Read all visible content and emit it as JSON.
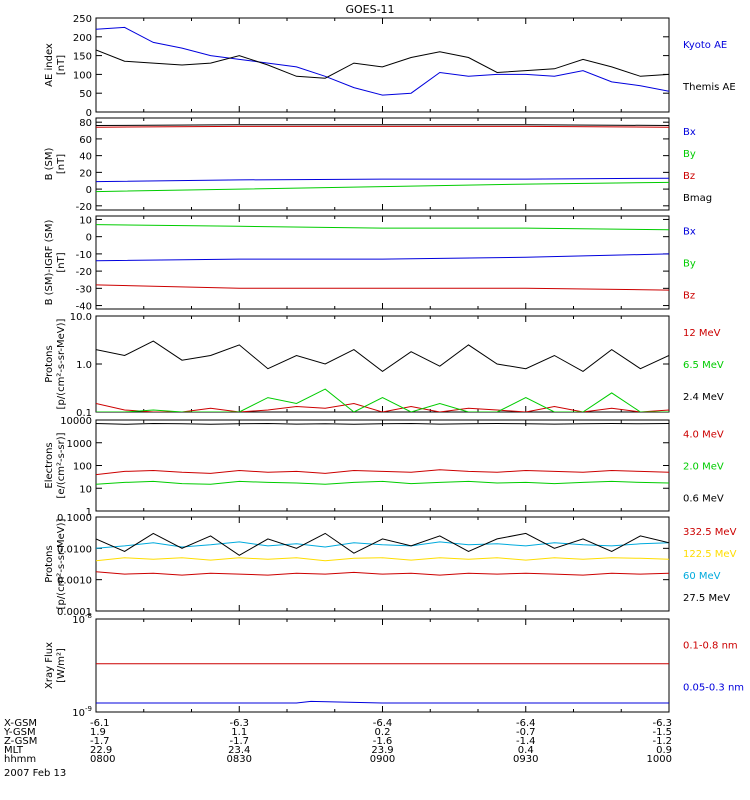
{
  "title": "GOES-11",
  "date_label": "2007 Feb 13",
  "chart_data": [
    {
      "type": "line",
      "panel": "ae_index",
      "ylabel": [
        "AE index",
        "[nT]"
      ],
      "scale": "linear",
      "ylim": [
        0,
        250
      ],
      "yticks": [
        "0",
        "50",
        "100",
        "150",
        "200",
        "250"
      ],
      "x_hours": [
        8.0,
        8.1,
        8.2,
        8.3,
        8.4,
        8.5,
        8.6,
        8.7,
        8.8,
        8.9,
        9.0,
        9.1,
        9.2,
        9.3,
        9.4,
        9.5,
        9.6,
        9.7,
        9.8,
        9.9,
        10.0
      ],
      "series": [
        {
          "name": "Kyoto AE",
          "color": "#0000dd",
          "values": [
            220,
            225,
            185,
            170,
            150,
            140,
            130,
            120,
            95,
            65,
            45,
            50,
            105,
            95,
            100,
            100,
            95,
            110,
            80,
            70,
            55
          ]
        },
        {
          "name": "Themis AE",
          "color": "#000000",
          "values": [
            165,
            135,
            130,
            125,
            130,
            150,
            125,
            95,
            90,
            130,
            120,
            145,
            160,
            145,
            105,
            110,
            115,
            140,
            120,
            95,
            100
          ]
        }
      ]
    },
    {
      "type": "line",
      "panel": "b_sm",
      "ylabel": [
        "B (SM)",
        "[nT]"
      ],
      "scale": "linear",
      "ylim": [
        -25,
        85
      ],
      "yticks": [
        "-20",
        "0",
        "20",
        "40",
        "60",
        "80"
      ],
      "x_hours": [
        8.0,
        8.5,
        9.0,
        9.5,
        10.0
      ],
      "series": [
        {
          "name": "Bx",
          "color": "#0000dd",
          "values": [
            9,
            11,
            12,
            12,
            13
          ]
        },
        {
          "name": "By",
          "color": "#00cc00",
          "values": [
            -3,
            0,
            3,
            6,
            8
          ]
        },
        {
          "name": "Bz",
          "color": "#cc0000",
          "values": [
            74,
            75,
            75,
            75,
            74
          ]
        },
        {
          "name": "Bmag",
          "color": "#000000",
          "values": [
            76,
            77,
            77,
            77,
            76
          ]
        }
      ]
    },
    {
      "type": "line",
      "panel": "b_sm_igrf",
      "ylabel": [
        "B (SM)-IGRF (SM)",
        "[nT]"
      ],
      "scale": "linear",
      "ylim": [
        -42,
        12
      ],
      "yticks": [
        "-40",
        "-30",
        "-20",
        "-10",
        "0",
        "10"
      ],
      "x_hours": [
        8.0,
        8.5,
        9.0,
        9.5,
        10.0
      ],
      "series": [
        {
          "name": "Bx",
          "color": "#0000dd",
          "values": [
            -14,
            -13,
            -13,
            -12,
            -10
          ]
        },
        {
          "name": "By",
          "color": "#00cc00",
          "values": [
            7,
            6,
            5,
            5,
            4
          ]
        },
        {
          "name": "Bz",
          "color": "#cc0000",
          "values": [
            -28,
            -30,
            -30,
            -30,
            -31
          ]
        }
      ]
    },
    {
      "type": "line",
      "panel": "protons_hi",
      "ylabel": [
        "Protons",
        "[p/(cm²-s-sr-MeV)]"
      ],
      "scale": "log",
      "ylim": [
        0.1,
        10.0
      ],
      "yticks": [
        "0.1",
        "1.0",
        "10.0"
      ],
      "x_hours": [
        8.0,
        8.1,
        8.2,
        8.3,
        8.4,
        8.5,
        8.6,
        8.7,
        8.8,
        8.9,
        9.0,
        9.1,
        9.2,
        9.3,
        9.4,
        9.5,
        9.6,
        9.7,
        9.8,
        9.9,
        10.0
      ],
      "series": [
        {
          "name": "12 MeV",
          "color": "#cc0000",
          "values": [
            0.15,
            0.11,
            0.1,
            0.1,
            0.12,
            0.1,
            0.11,
            0.13,
            0.12,
            0.15,
            0.1,
            0.13,
            0.1,
            0.12,
            0.11,
            0.1,
            0.13,
            0.1,
            0.12,
            0.1,
            0.11
          ]
        },
        {
          "name": "6.5 MeV",
          "color": "#00cc00",
          "values": [
            0.1,
            0.1,
            0.11,
            0.1,
            0.1,
            0.1,
            0.2,
            0.15,
            0.3,
            0.1,
            0.2,
            0.1,
            0.15,
            0.1,
            0.1,
            0.2,
            0.1,
            0.1,
            0.25,
            0.1,
            0.1
          ]
        },
        {
          "name": "2.4 MeV",
          "color": "#000000",
          "values": [
            2.0,
            1.5,
            3.0,
            1.2,
            1.5,
            2.5,
            0.8,
            1.5,
            1.0,
            2.0,
            0.7,
            1.8,
            0.9,
            2.5,
            1.0,
            0.8,
            1.5,
            0.7,
            2.0,
            0.8,
            1.5
          ]
        }
      ]
    },
    {
      "type": "line",
      "panel": "electrons",
      "ylabel": [
        "Electrons",
        "[e/(cm²-s-sr)]"
      ],
      "scale": "log",
      "ylim": [
        1,
        10000
      ],
      "yticks": [
        "1",
        "10",
        "100",
        "1000",
        "10000"
      ],
      "x_hours": [
        8.0,
        8.1,
        8.2,
        8.3,
        8.4,
        8.5,
        8.6,
        8.7,
        8.8,
        8.9,
        9.0,
        9.1,
        9.2,
        9.3,
        9.4,
        9.5,
        9.6,
        9.7,
        9.8,
        9.9,
        10.0
      ],
      "series": [
        {
          "name": "4.0 MeV",
          "color": "#cc0000",
          "values": [
            40,
            55,
            60,
            50,
            45,
            60,
            50,
            55,
            45,
            60,
            55,
            50,
            65,
            55,
            50,
            60,
            55,
            50,
            60,
            55,
            50
          ]
        },
        {
          "name": "2.0 MeV",
          "color": "#00cc00",
          "values": [
            15,
            18,
            20,
            16,
            15,
            20,
            18,
            17,
            15,
            18,
            20,
            16,
            18,
            20,
            17,
            18,
            16,
            18,
            20,
            18,
            17
          ]
        },
        {
          "name": "0.6 MeV",
          "color": "#000000",
          "values": [
            7000,
            6500,
            7000,
            6800,
            6500,
            6800,
            7000,
            6600,
            6800,
            6500,
            6800,
            7000,
            6600,
            6800,
            7000,
            6800,
            6600,
            6800,
            7000,
            6800,
            7000
          ]
        }
      ]
    },
    {
      "type": "line",
      "panel": "protons_lo",
      "ylabel": [
        "Protons",
        "[p/(cm²-s-sr-MeV)]"
      ],
      "scale": "log",
      "ylim": [
        0.0001,
        0.1
      ],
      "yticks": [
        "0.0001",
        "0.0010",
        "0.0100",
        "0.1000"
      ],
      "x_hours": [
        8.0,
        8.1,
        8.2,
        8.3,
        8.4,
        8.5,
        8.6,
        8.7,
        8.8,
        8.9,
        9.0,
        9.1,
        9.2,
        9.3,
        9.4,
        9.5,
        9.6,
        9.7,
        9.8,
        9.9,
        10.0
      ],
      "series": [
        {
          "name": "332.5 MeV",
          "color": "#cc0000",
          "values": [
            0.0018,
            0.0015,
            0.0016,
            0.0014,
            0.0016,
            0.0015,
            0.0014,
            0.0016,
            0.0015,
            0.0017,
            0.0015,
            0.0016,
            0.0014,
            0.0016,
            0.0015,
            0.0016,
            0.0015,
            0.0014,
            0.0016,
            0.0015,
            0.0016
          ]
        },
        {
          "name": "122.5 MeV",
          "color": "#ffdd00",
          "values": [
            0.004,
            0.005,
            0.0045,
            0.005,
            0.0042,
            0.005,
            0.0045,
            0.005,
            0.004,
            0.0048,
            0.005,
            0.0042,
            0.005,
            0.0045,
            0.005,
            0.0042,
            0.005,
            0.0045,
            0.005,
            0.0048,
            0.0045
          ]
        },
        {
          "name": "60 MeV",
          "color": "#00aadd",
          "values": [
            0.01,
            0.012,
            0.015,
            0.011,
            0.013,
            0.016,
            0.012,
            0.014,
            0.011,
            0.015,
            0.013,
            0.012,
            0.016,
            0.013,
            0.014,
            0.012,
            0.015,
            0.013,
            0.012,
            0.014,
            0.015
          ]
        },
        {
          "name": "27.5 MeV",
          "color": "#000000",
          "values": [
            0.02,
            0.008,
            0.03,
            0.01,
            0.025,
            0.006,
            0.02,
            0.01,
            0.03,
            0.007,
            0.02,
            0.012,
            0.025,
            0.008,
            0.02,
            0.03,
            0.01,
            0.02,
            0.008,
            0.025,
            0.015
          ]
        }
      ]
    },
    {
      "type": "line",
      "panel": "xray",
      "ylabel": [
        "Xray Flux",
        "[W/m²]"
      ],
      "scale": "log",
      "ylim": [
        1e-09,
        1e-08
      ],
      "yticks_sup": [
        {
          "base": "10",
          "exp": "-9"
        },
        {
          "base": "10",
          "exp": "-8"
        }
      ],
      "x_hours": [
        8.0,
        8.5,
        8.7,
        8.75,
        9.0,
        9.5,
        10.0
      ],
      "series": [
        {
          "name": "0.1-0.8 nm",
          "color": "#cc0000",
          "values": [
            3.3e-09,
            3.3e-09,
            3.3e-09,
            3.3e-09,
            3.3e-09,
            3.3e-09,
            3.3e-09
          ]
        },
        {
          "name": "0.05-0.3 nm",
          "color": "#0000dd",
          "values": [
            1.25e-09,
            1.25e-09,
            1.25e-09,
            1.3e-09,
            1.25e-09,
            1.25e-09,
            1.25e-09
          ]
        }
      ]
    }
  ],
  "ephemeris": {
    "row_labels": [
      "X-GSM",
      "Y-GSM",
      "Z-GSM",
      "MLT",
      "hhmm"
    ],
    "columns": [
      [
        "-6.1",
        "1.9",
        "-1.7",
        "22.9",
        "0800"
      ],
      [
        "-6.3",
        "1.1",
        "-1.7",
        "23.4",
        "0830"
      ],
      [
        "-6.4",
        "0.2",
        "-1.6",
        "23.9",
        "0900"
      ],
      [
        "-6.4",
        "-0.7",
        "-1.4",
        "0.4",
        "0930"
      ],
      [
        "-6.3",
        "-1.5",
        "-1.2",
        "0.9",
        "1000"
      ]
    ]
  }
}
